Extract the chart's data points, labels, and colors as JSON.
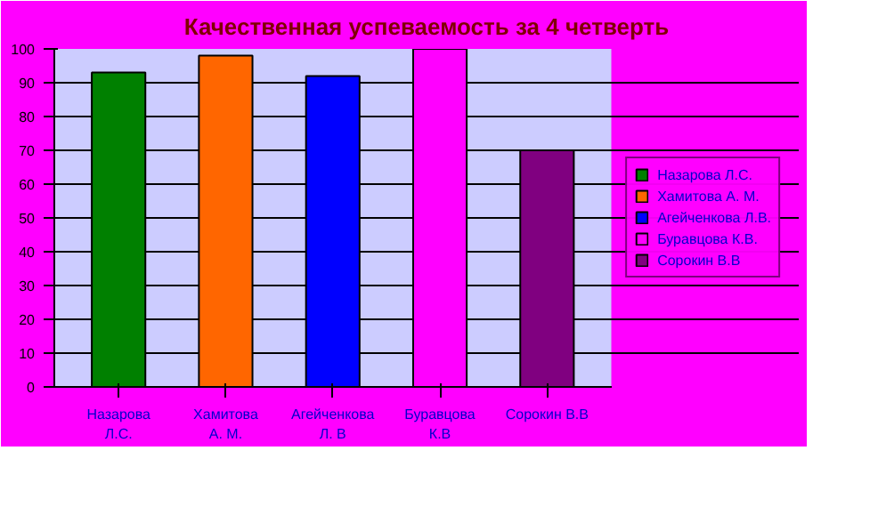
{
  "chart_data": {
    "type": "bar",
    "title": "Качественная успеваемость за 4 четверть",
    "categories": [
      "Назарова Л.С.",
      "Хамитова А. М.",
      "Агейченкова Л. В",
      "Буравцова К.В",
      "Сорокин В.В"
    ],
    "series": [
      {
        "name": "Назарова Л.С.",
        "color": "#008000",
        "values": [
          93,
          null,
          null,
          null,
          null
        ]
      },
      {
        "name": "Хамитова А. М.",
        "color": "#ff6600",
        "values": [
          null,
          98,
          null,
          null,
          null
        ]
      },
      {
        "name": "Агейченкова Л.В.",
        "color": "#0000ff",
        "values": [
          null,
          null,
          92,
          null,
          null
        ]
      },
      {
        "name": "Буравцова К.В.",
        "color": "#ff00ff",
        "values": [
          null,
          null,
          null,
          100,
          null
        ]
      },
      {
        "name": "Сорокин В.В",
        "color": "#800080",
        "values": [
          null,
          null,
          null,
          null,
          70
        ]
      }
    ],
    "ylim": [
      0,
      100
    ],
    "yticks": [
      0,
      10,
      20,
      30,
      40,
      50,
      60,
      70,
      80,
      90,
      100
    ],
    "grid": "y",
    "legend": "right"
  }
}
